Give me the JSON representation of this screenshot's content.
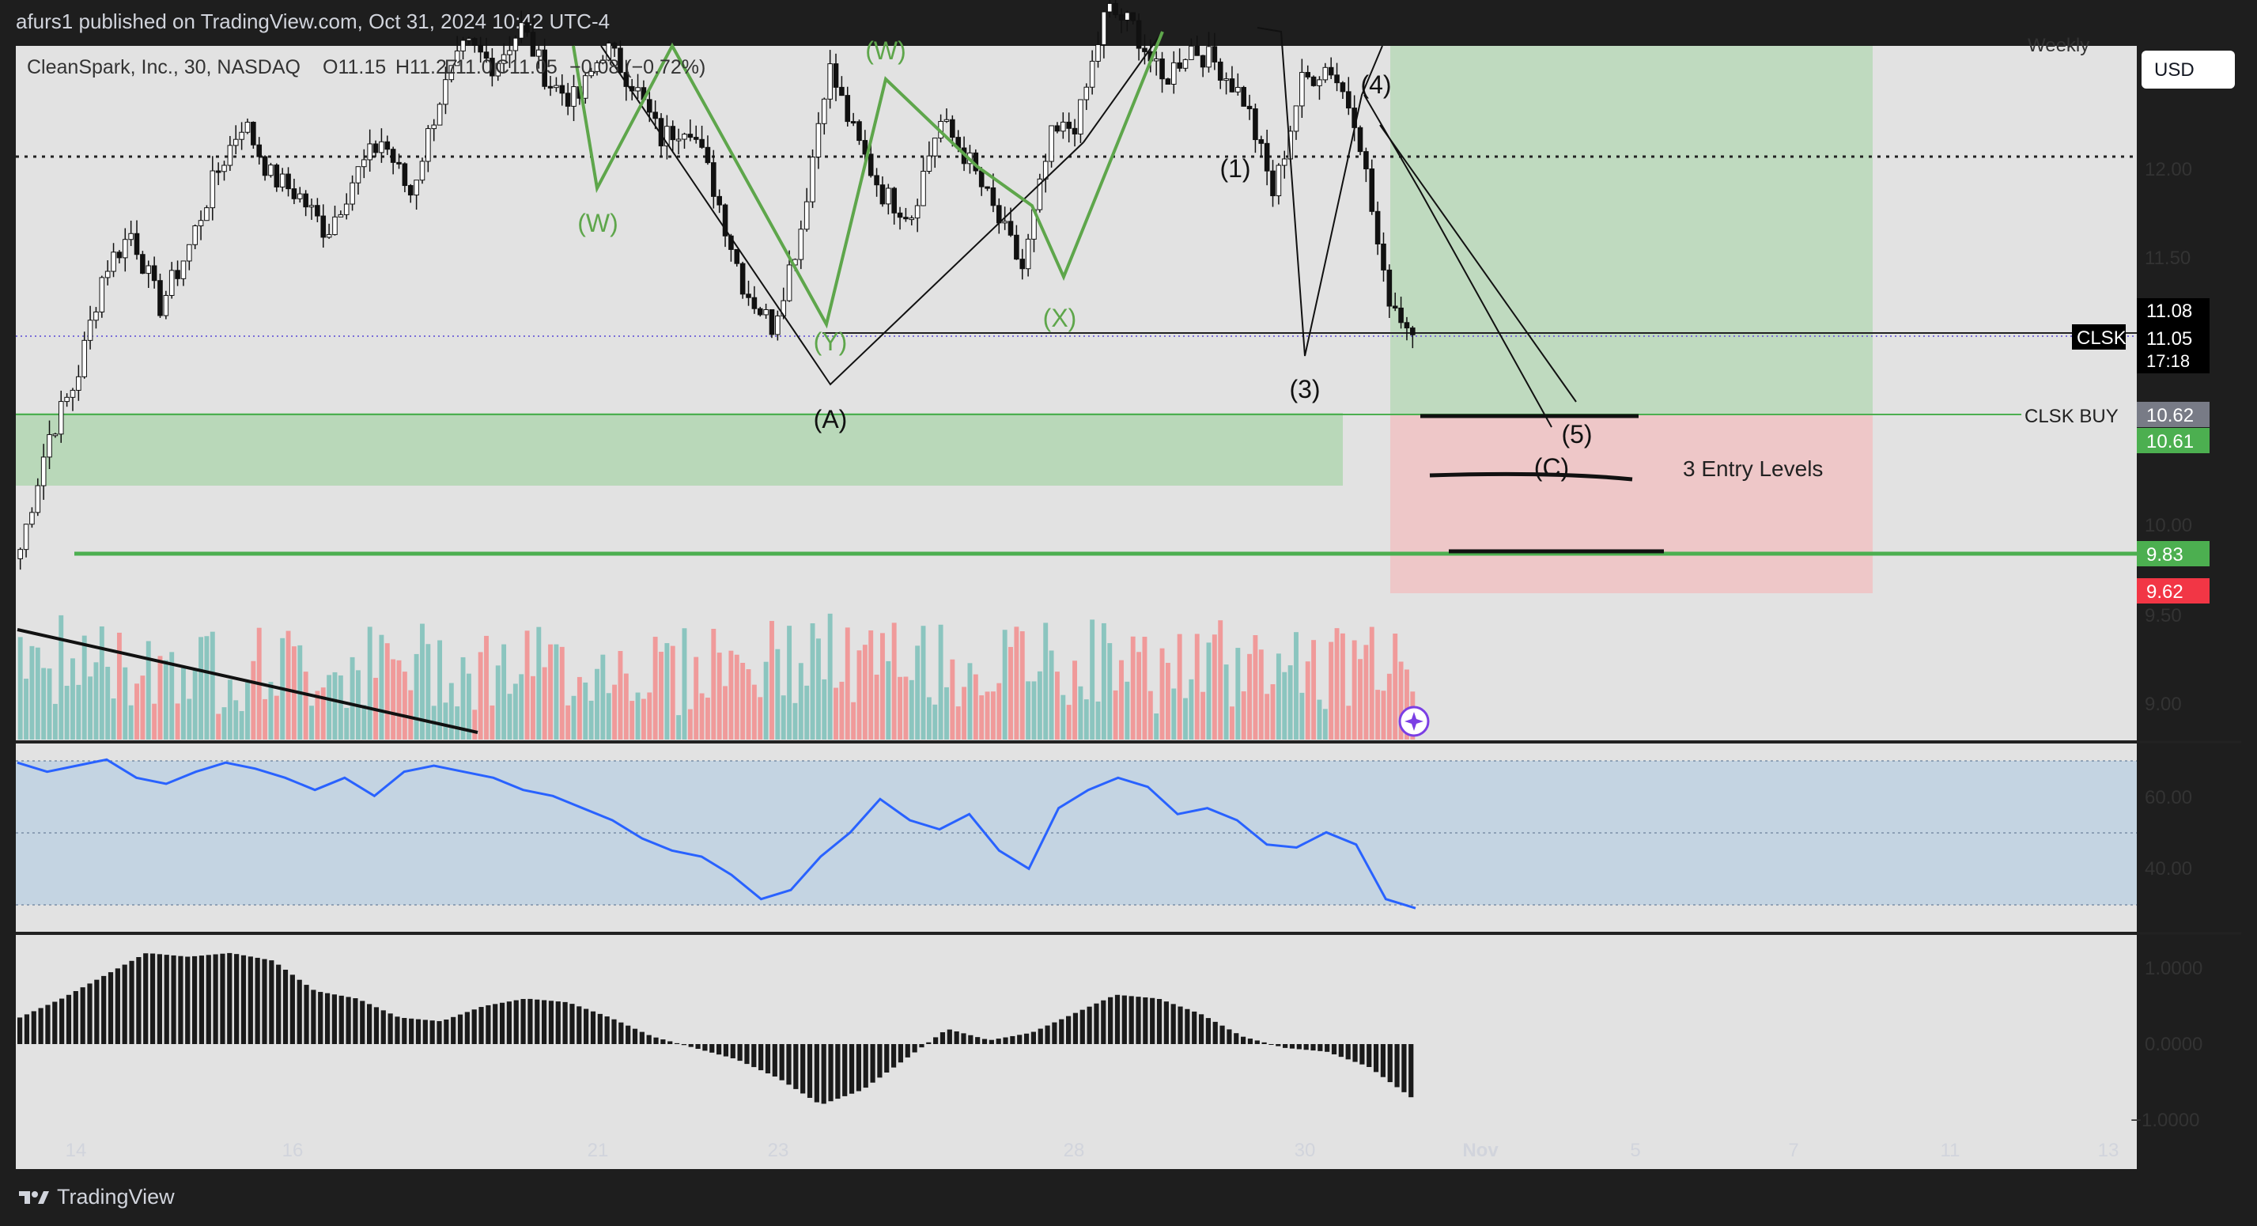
{
  "header": {
    "publisher": "afurs1 published on TradingView.com, Oct 31, 2024 10:42 UTC-4"
  },
  "legend": {
    "symbol_line": "CleanSpark, Inc., 30, NASDAQ",
    "open": "O11.15",
    "high": "H11.27",
    "low": "L11.0",
    "close": "C11.05",
    "change": "−0.08 (−0.72%)"
  },
  "currency_button": "USD",
  "timeframe_tag": "Weekly",
  "price_axis": {
    "ticks": [
      "12.00",
      "11.50",
      "10.00",
      "9.50",
      "9.00"
    ],
    "symbol_tag": "CLSK",
    "last_high": "11.08",
    "last_price": "11.05",
    "countdown": "17:18",
    "buy_line_label": "CLSK BUY",
    "buy_price": "10.62",
    "target_price": "10.61",
    "support_price": "9.83",
    "stop_price": "9.62"
  },
  "rsi_axis": {
    "ticks": [
      "60.00",
      "40.00"
    ]
  },
  "osc_axis": {
    "ticks": [
      "1.0000",
      "0.0000",
      "−1.0000"
    ]
  },
  "time_axis": {
    "ticks": [
      "14",
      "16",
      "21",
      "23",
      "28",
      "30",
      "Nov",
      "5",
      "7",
      "11",
      "13"
    ]
  },
  "annotations": {
    "wave_W1": "(W)",
    "wave_W2": "(W)",
    "wave_X": "(X)",
    "wave_Y": "(Y)",
    "wave_A": "(A)",
    "wave_1": "(1)",
    "wave_3": "(3)",
    "wave_4": "(4)",
    "wave_5": "(5)",
    "wave_C": "(C)",
    "entry_levels": "3 Entry Levels"
  },
  "footer": {
    "brand": "TradingView"
  },
  "colors": {
    "background": "#1e1e1e",
    "chart_bg": "#e2e2e2",
    "green_zone": "#b9d8b9",
    "red_zone": "#eec7c8",
    "wave_green": "#5ea64b",
    "rsi_line": "#2962ff",
    "bull_volume": "#8bc5bf",
    "bear_volume": "#f09a9a",
    "support_line": "#4caf50",
    "stop_tag": "#f23645"
  },
  "chart_data": {
    "type": "candlestick",
    "symbol": "CLSK",
    "ylim": [
      8.9,
      12.6
    ],
    "x_ticks": [
      "14",
      "16",
      "21",
      "23",
      "28",
      "30",
      "Nov",
      "5",
      "7",
      "11",
      "13"
    ],
    "levels": {
      "last": 11.05,
      "buy": 10.62,
      "target": 10.61,
      "support": 9.83,
      "stop": 9.62
    },
    "close_path": [
      9.9,
      10.5,
      10.8,
      11.4,
      11.6,
      11.2,
      11.5,
      11.9,
      12.2,
      11.9,
      11.8,
      11.6,
      11.9,
      12.1,
      11.8,
      12.3,
      12.6,
      12.5,
      12.7,
      12.4,
      12.3,
      12.6,
      12.4,
      12.1,
      12.2,
      11.8,
      11.3,
      11.1,
      11.6,
      12.5,
      12.1,
      11.8,
      11.7,
      12.2,
      12.0,
      11.7,
      11.4,
      12.1,
      12.2,
      12.8,
      12.7,
      12.4,
      12.6,
      12.5,
      12.3,
      11.8,
      12.4,
      12.5,
      12.2,
      11.3,
      11.05
    ],
    "rsi": [
      75,
      72,
      74,
      76,
      70,
      68,
      72,
      75,
      73,
      70,
      66,
      70,
      64,
      72,
      74,
      72,
      70,
      66,
      64,
      60,
      56,
      50,
      46,
      44,
      38,
      30,
      33,
      44,
      52,
      63,
      56,
      53,
      58,
      46,
      40,
      60,
      66,
      70,
      67,
      58,
      60,
      56,
      48,
      47,
      52,
      48,
      30,
      27
    ],
    "oscillator": [
      0.35,
      0.6,
      0.9,
      1.2,
      1.15,
      1.2,
      1.1,
      0.7,
      0.6,
      0.35,
      0.3,
      0.5,
      0.6,
      0.55,
      0.35,
      0.1,
      -0.05,
      -0.2,
      -0.45,
      -0.8,
      -0.6,
      -0.2,
      0.2,
      0.05,
      0.15,
      0.4,
      0.65,
      0.6,
      0.4,
      0.1,
      -0.05,
      -0.1,
      -0.3,
      -0.7
    ]
  }
}
